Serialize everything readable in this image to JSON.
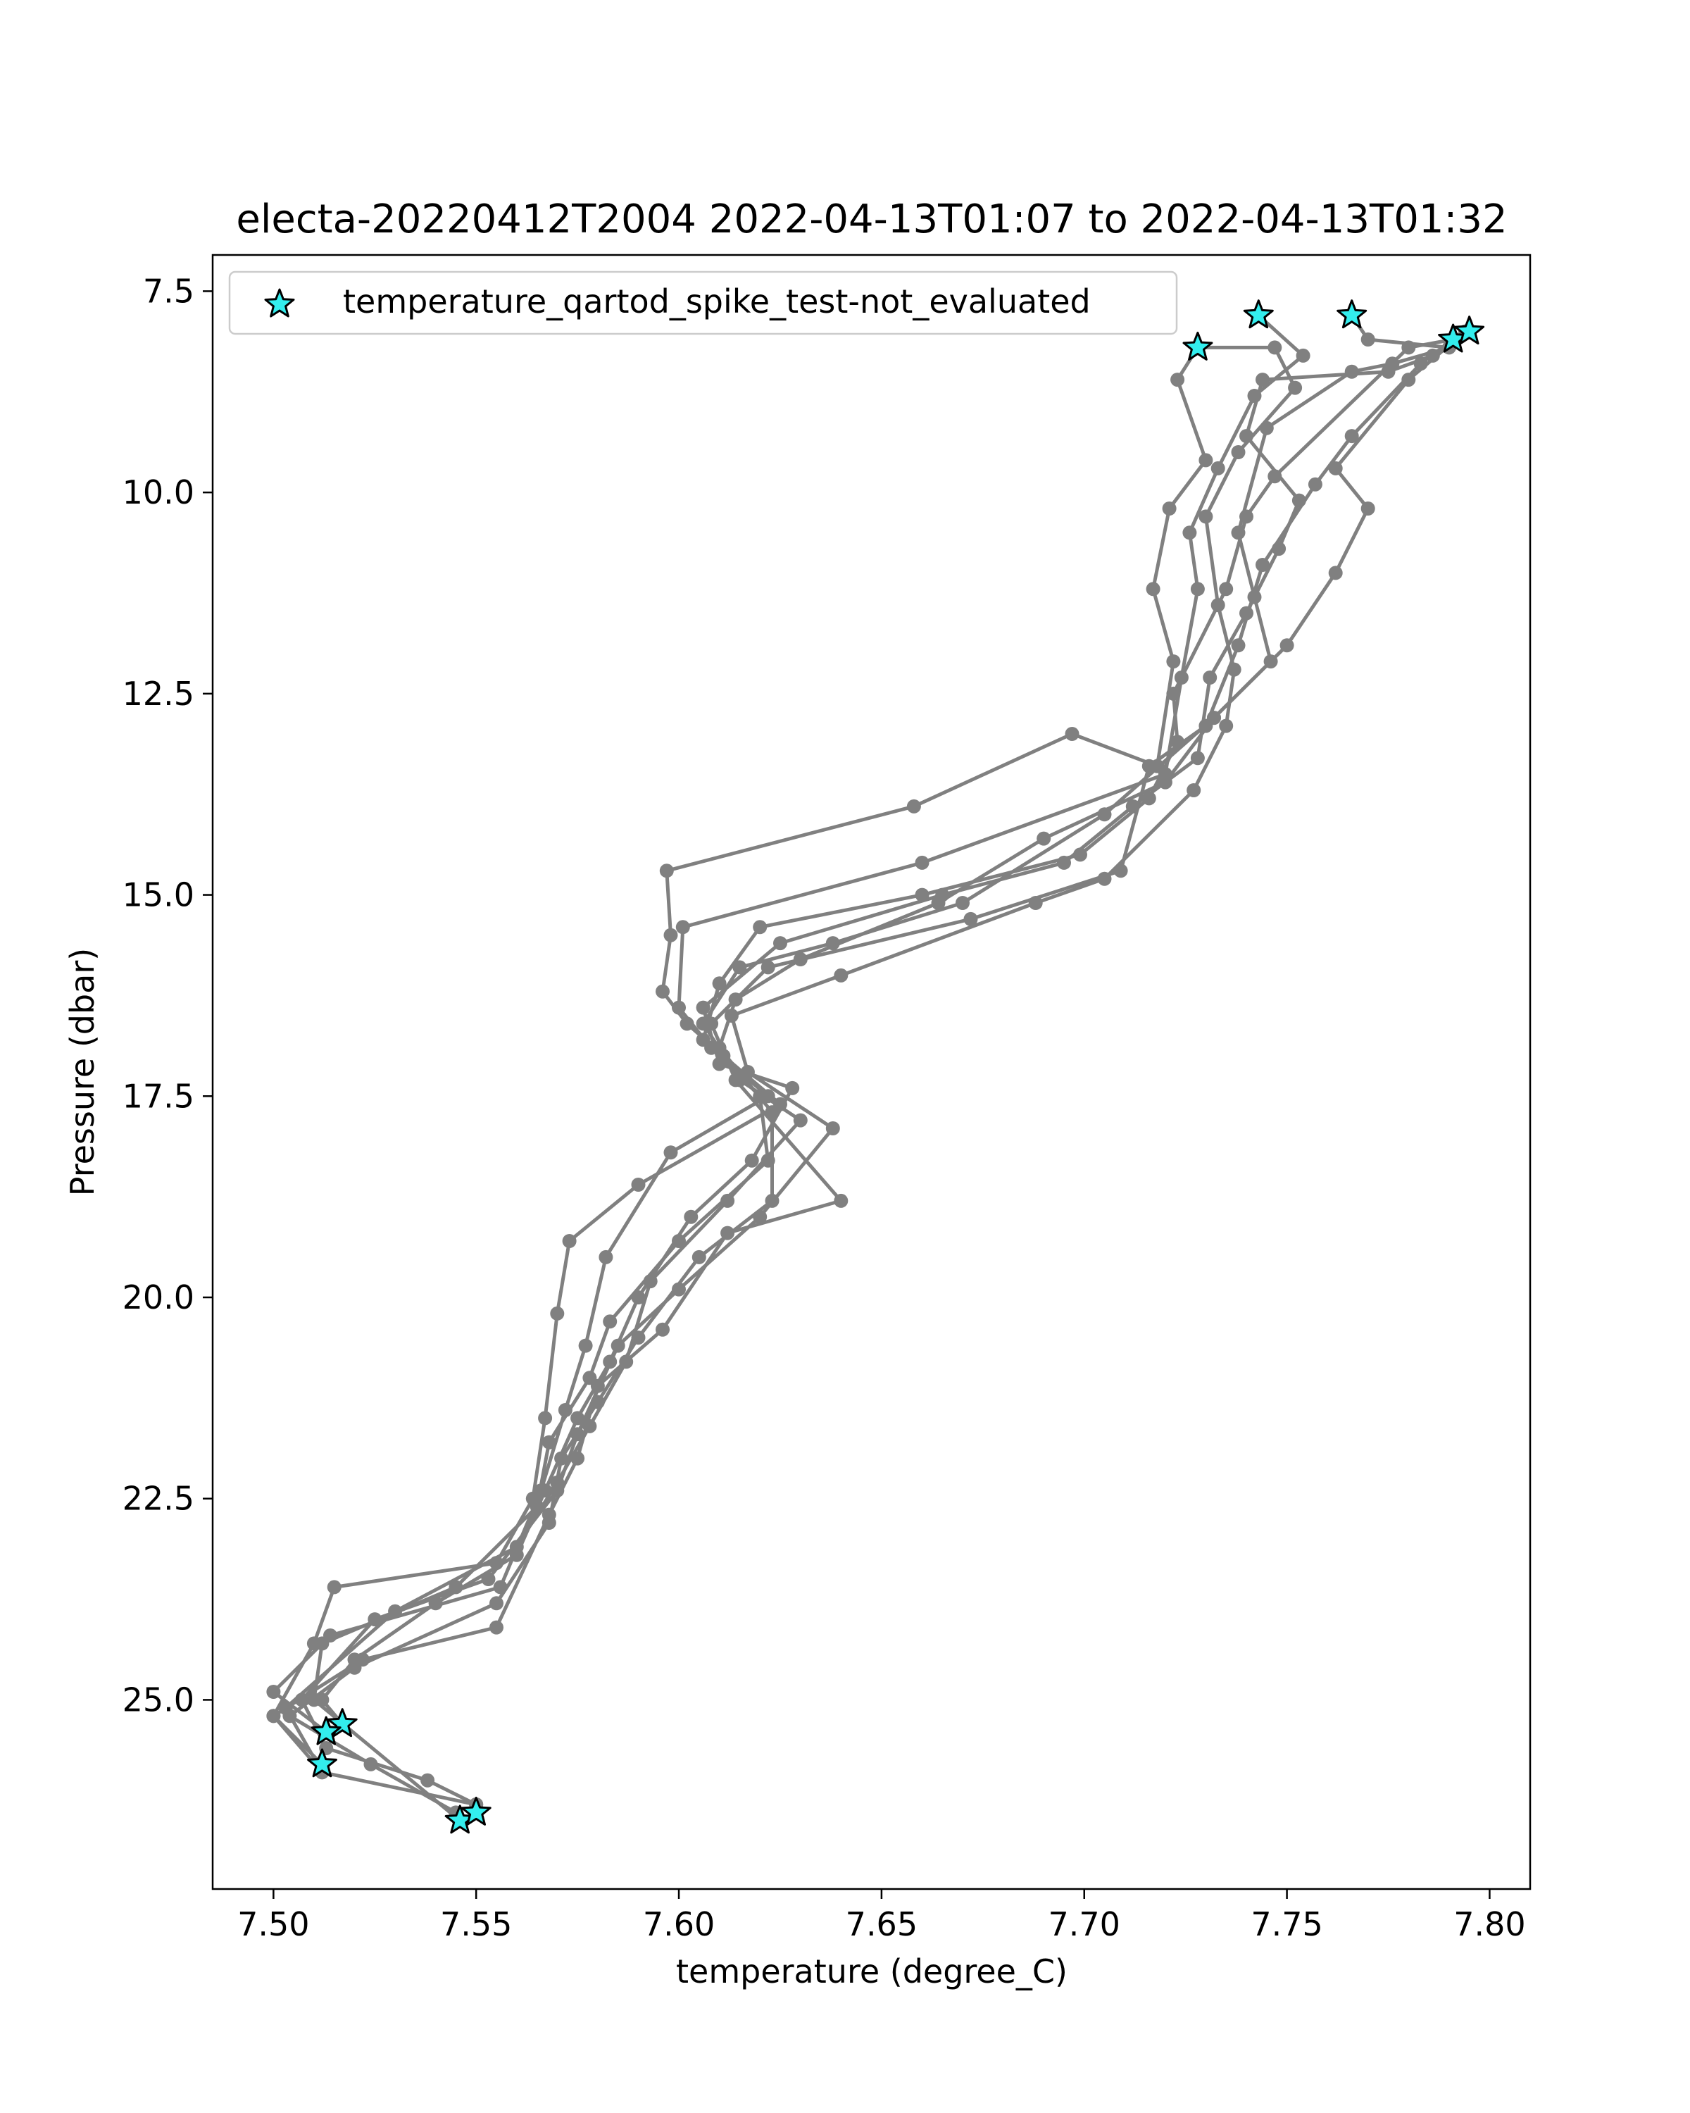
{
  "chart_data": {
    "type": "line",
    "title": "electa-20220412T2004 2022-04-13T01:07 to 2022-04-13T01:32",
    "xlabel": "temperature (degree_C)",
    "ylabel": "Pressure (dbar)",
    "xlim": [
      7.485,
      7.81
    ],
    "ylim": [
      27.35,
      7.05
    ],
    "y_inverted": true,
    "xticks": [
      {
        "value": 7.5,
        "label": "7.50"
      },
      {
        "value": 7.55,
        "label": "7.55"
      },
      {
        "value": 7.6,
        "label": "7.60"
      },
      {
        "value": 7.65,
        "label": "7.65"
      },
      {
        "value": 7.7,
        "label": "7.70"
      },
      {
        "value": 7.75,
        "label": "7.75"
      },
      {
        "value": 7.8,
        "label": "7.80"
      }
    ],
    "yticks": [
      {
        "value": 7.5,
        "label": "7.5"
      },
      {
        "value": 10.0,
        "label": "10.0"
      },
      {
        "value": 12.5,
        "label": "12.5"
      },
      {
        "value": 15.0,
        "label": "15.0"
      },
      {
        "value": 17.5,
        "label": "17.5"
      },
      {
        "value": 20.0,
        "label": "20.0"
      },
      {
        "value": 22.5,
        "label": "22.5"
      },
      {
        "value": 25.0,
        "label": "25.0"
      }
    ],
    "grid": false,
    "legend": {
      "location": "upper-left",
      "entries": [
        {
          "label": "temperature_qartod_spike_test-not_evaluated",
          "marker": "star",
          "color": "#33eeee",
          "edgecolor": "#000000"
        }
      ]
    },
    "profile_color": "#808080",
    "profiles": [
      {
        "points": [
          [
            7.728,
            8.2
          ],
          [
            7.723,
            8.6
          ],
          [
            7.73,
            9.6
          ],
          [
            7.721,
            10.2
          ],
          [
            7.717,
            11.2
          ],
          [
            7.722,
            12.1
          ],
          [
            7.718,
            13.4
          ],
          [
            7.697,
            13.0
          ],
          [
            7.658,
            13.9
          ],
          [
            7.597,
            14.7
          ],
          [
            7.598,
            15.5
          ],
          [
            7.596,
            16.2
          ],
          [
            7.602,
            16.6
          ],
          [
            7.611,
            17.0
          ],
          [
            7.625,
            17.6
          ],
          [
            7.59,
            18.6
          ],
          [
            7.573,
            19.3
          ],
          [
            7.57,
            20.2
          ],
          [
            7.567,
            21.5
          ],
          [
            7.564,
            22.5
          ],
          [
            7.555,
            23.3
          ],
          [
            7.515,
            23.6
          ],
          [
            7.51,
            24.3
          ],
          [
            7.5,
            25.2
          ],
          [
            7.512,
            25.8
          ]
        ]
      },
      {
        "points": [
          [
            7.743,
            7.8
          ],
          [
            7.754,
            8.3
          ],
          [
            7.742,
            8.8
          ],
          [
            7.733,
            9.7
          ],
          [
            7.726,
            10.5
          ],
          [
            7.728,
            11.2
          ],
          [
            7.724,
            12.3
          ],
          [
            7.72,
            13.5
          ],
          [
            7.66,
            14.6
          ],
          [
            7.601,
            15.4
          ],
          [
            7.6,
            16.4
          ],
          [
            7.608,
            16.9
          ],
          [
            7.622,
            17.5
          ],
          [
            7.598,
            18.2
          ],
          [
            7.582,
            19.5
          ],
          [
            7.577,
            20.6
          ],
          [
            7.572,
            21.4
          ],
          [
            7.566,
            22.4
          ],
          [
            7.556,
            23.6
          ],
          [
            7.514,
            24.2
          ],
          [
            7.5,
            24.9
          ],
          [
            7.513,
            25.4
          ]
        ]
      },
      {
        "points": [
          [
            7.766,
            7.8
          ],
          [
            7.77,
            8.1
          ],
          [
            7.79,
            8.2
          ],
          [
            7.776,
            8.4
          ],
          [
            7.766,
            8.5
          ],
          [
            7.745,
            9.2
          ],
          [
            7.738,
            10.5
          ],
          [
            7.742,
            11.3
          ],
          [
            7.746,
            12.1
          ],
          [
            7.732,
            12.8
          ],
          [
            7.705,
            14.0
          ],
          [
            7.67,
            15.1
          ],
          [
            7.638,
            15.6
          ],
          [
            7.615,
            15.9
          ],
          [
            7.606,
            16.6
          ],
          [
            7.615,
            17.3
          ],
          [
            7.63,
            17.8
          ],
          [
            7.612,
            18.8
          ],
          [
            7.593,
            19.8
          ],
          [
            7.587,
            20.8
          ],
          [
            7.578,
            21.6
          ],
          [
            7.57,
            22.3
          ],
          [
            7.56,
            23.1
          ],
          [
            7.53,
            23.9
          ],
          [
            7.503,
            25.1
          ],
          [
            7.512,
            25.9
          ]
        ]
      },
      {
        "points": [
          [
            7.795,
            8.0
          ],
          [
            7.786,
            8.3
          ],
          [
            7.775,
            8.5
          ],
          [
            7.744,
            8.6
          ],
          [
            7.74,
            9.3
          ],
          [
            7.753,
            10.1
          ],
          [
            7.748,
            10.7
          ],
          [
            7.74,
            11.5
          ],
          [
            7.731,
            12.3
          ],
          [
            7.728,
            13.3
          ],
          [
            7.712,
            13.9
          ],
          [
            7.695,
            14.6
          ],
          [
            7.665,
            15.0
          ],
          [
            7.625,
            15.6
          ],
          [
            7.606,
            16.4
          ],
          [
            7.61,
            17.1
          ],
          [
            7.628,
            17.4
          ],
          [
            7.618,
            18.3
          ],
          [
            7.603,
            19.0
          ],
          [
            7.59,
            20.0
          ],
          [
            7.583,
            20.8
          ],
          [
            7.575,
            21.5
          ],
          [
            7.567,
            22.4
          ],
          [
            7.56,
            23.2
          ],
          [
            7.54,
            23.8
          ],
          [
            7.52,
            24.5
          ],
          [
            7.512,
            25.0
          ],
          [
            7.517,
            25.3
          ]
        ]
      },
      {
        "points": [
          [
            7.791,
            8.1
          ],
          [
            7.78,
            8.2
          ],
          [
            7.747,
            9.8
          ],
          [
            7.74,
            10.3
          ],
          [
            7.735,
            11.2
          ],
          [
            7.722,
            12.5
          ],
          [
            7.723,
            13.1
          ],
          [
            7.716,
            13.8
          ],
          [
            7.699,
            14.5
          ],
          [
            7.66,
            15.0
          ],
          [
            7.62,
            15.4
          ],
          [
            7.61,
            16.1
          ],
          [
            7.606,
            16.8
          ],
          [
            7.62,
            17.5
          ],
          [
            7.622,
            18.3
          ],
          [
            7.6,
            19.3
          ],
          [
            7.583,
            20.3
          ],
          [
            7.578,
            21.0
          ],
          [
            7.568,
            21.8
          ],
          [
            7.565,
            22.6
          ],
          [
            7.545,
            23.6
          ],
          [
            7.512,
            24.3
          ],
          [
            7.51,
            25.0
          ],
          [
            7.546,
            26.5
          ]
        ]
      },
      {
        "points": [
          [
            7.794,
            8.0
          ],
          [
            7.78,
            8.6
          ],
          [
            7.762,
            9.7
          ],
          [
            7.77,
            10.2
          ],
          [
            7.762,
            11.0
          ],
          [
            7.75,
            11.9
          ],
          [
            7.732,
            12.8
          ],
          [
            7.72,
            13.6
          ],
          [
            7.69,
            14.3
          ],
          [
            7.664,
            15.1
          ],
          [
            7.63,
            15.8
          ],
          [
            7.614,
            16.3
          ],
          [
            7.61,
            16.9
          ],
          [
            7.623,
            17.7
          ],
          [
            7.623,
            18.8
          ],
          [
            7.605,
            19.5
          ],
          [
            7.59,
            20.5
          ],
          [
            7.58,
            21.3
          ],
          [
            7.571,
            22.0
          ],
          [
            7.568,
            22.8
          ],
          [
            7.555,
            23.8
          ],
          [
            7.52,
            24.6
          ],
          [
            7.504,
            25.2
          ],
          [
            7.524,
            25.8
          ],
          [
            7.545,
            26.4
          ]
        ]
      },
      {
        "points": [
          [
            7.728,
            8.2
          ],
          [
            7.747,
            8.2
          ],
          [
            7.752,
            8.7
          ],
          [
            7.738,
            9.5
          ],
          [
            7.73,
            10.3
          ],
          [
            7.733,
            11.4
          ],
          [
            7.737,
            12.2
          ],
          [
            7.735,
            12.9
          ],
          [
            7.727,
            13.7
          ],
          [
            7.705,
            14.8
          ],
          [
            7.688,
            15.1
          ],
          [
            7.64,
            16.0
          ],
          [
            7.613,
            16.5
          ],
          [
            7.617,
            17.2
          ],
          [
            7.638,
            17.9
          ],
          [
            7.62,
            19.0
          ],
          [
            7.6,
            19.9
          ],
          [
            7.585,
            20.6
          ],
          [
            7.575,
            21.7
          ],
          [
            7.57,
            22.4
          ],
          [
            7.553,
            23.5
          ],
          [
            7.525,
            24.0
          ],
          [
            7.507,
            25.0
          ],
          [
            7.513,
            25.6
          ],
          [
            7.538,
            26.0
          ],
          [
            7.55,
            26.3
          ]
        ]
      },
      {
        "points": [
          [
            7.791,
            8.1
          ],
          [
            7.783,
            8.4
          ],
          [
            7.766,
            9.3
          ],
          [
            7.757,
            9.9
          ],
          [
            7.744,
            10.9
          ],
          [
            7.738,
            11.9
          ],
          [
            7.73,
            12.9
          ],
          [
            7.716,
            13.4
          ],
          [
            7.709,
            14.7
          ],
          [
            7.672,
            15.3
          ],
          [
            7.622,
            15.9
          ],
          [
            7.608,
            16.6
          ],
          [
            7.614,
            17.3
          ],
          [
            7.64,
            18.8
          ],
          [
            7.612,
            19.2
          ],
          [
            7.596,
            20.4
          ],
          [
            7.58,
            21.1
          ],
          [
            7.575,
            22.0
          ],
          [
            7.568,
            22.7
          ],
          [
            7.555,
            24.1
          ],
          [
            7.522,
            24.5
          ],
          [
            7.5,
            25.2
          ],
          [
            7.512,
            25.9
          ],
          [
            7.55,
            26.3
          ]
        ]
      }
    ],
    "flagged_points": {
      "label": "temperature_qartod_spike_test-not_evaluated",
      "points": [
        [
          7.728,
          8.2
        ],
        [
          7.743,
          7.8
        ],
        [
          7.766,
          7.8
        ],
        [
          7.791,
          8.1
        ],
        [
          7.795,
          8.0
        ],
        [
          7.517,
          25.3
        ],
        [
          7.513,
          25.4
        ],
        [
          7.512,
          25.8
        ],
        [
          7.546,
          26.5
        ],
        [
          7.55,
          26.4
        ]
      ]
    }
  }
}
